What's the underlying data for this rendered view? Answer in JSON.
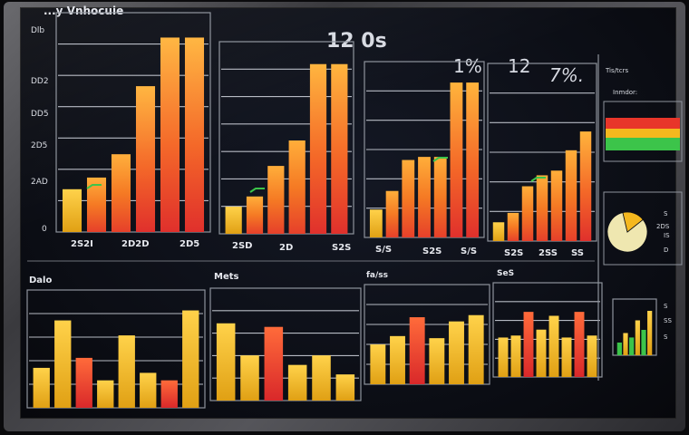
{
  "header": {
    "title": "...y Vnhocuie",
    "readout_center": "12 0s",
    "readout_right_1": "1%",
    "readout_right_2": "12",
    "readout_right_3": "7%."
  },
  "axis_labels": [
    "Dlb",
    "DD2",
    "DD5",
    "2D5",
    "2AD",
    "0"
  ],
  "top_panels": [
    {
      "ticks": [
        "2S2I",
        "2D2D",
        "2D5"
      ]
    },
    {
      "ticks": [
        "2SD",
        "2D",
        "S2S"
      ]
    },
    {
      "ticks": [
        "S/S",
        "S2S",
        "S/S"
      ]
    },
    {
      "ticks": [
        "S2S",
        "2SS",
        "SS"
      ]
    }
  ],
  "bottom_titles": [
    "Dalo",
    "Mets",
    "fa/ss",
    "SeS"
  ],
  "side": {
    "title": "Tis/tcrs",
    "subtitle": "Inmdor:",
    "pie_value": "2DS",
    "legend": [
      "S",
      "IS",
      "D",
      "S",
      "SS",
      "S"
    ]
  },
  "colors": {
    "yellow": "#f5b81e",
    "orange": "#f47a22",
    "red": "#e8352a",
    "green": "#3cc44a",
    "grid": "#c9cdd6"
  },
  "chart_data": [
    {
      "type": "bar",
      "panel": "top-1",
      "categories": [
        "1",
        "2",
        "3",
        "4",
        "5",
        "6"
      ],
      "values": [
        22,
        28,
        40,
        75,
        100,
        100
      ],
      "ylim": [
        0,
        110
      ]
    },
    {
      "type": "bar",
      "panel": "top-2",
      "categories": [
        "1",
        "2",
        "3",
        "4",
        "5",
        "6"
      ],
      "values": [
        16,
        22,
        40,
        55,
        100,
        100
      ],
      "ylim": [
        0,
        110
      ]
    },
    {
      "type": "bar",
      "panel": "top-3",
      "categories": [
        "1",
        "2",
        "3",
        "4",
        "5",
        "6",
        "7"
      ],
      "values": [
        18,
        30,
        50,
        52,
        52,
        100,
        100
      ],
      "ylim": [
        0,
        110
      ]
    },
    {
      "type": "bar",
      "panel": "top-4",
      "categories": [
        "1",
        "2",
        "3",
        "4",
        "5",
        "6",
        "7"
      ],
      "values": [
        12,
        18,
        35,
        42,
        45,
        58,
        70
      ],
      "ylim": [
        0,
        110
      ]
    },
    {
      "type": "bar",
      "panel": "bottom-1",
      "categories": [
        "1",
        "2",
        "3",
        "4",
        "5",
        "6",
        "7",
        "8"
      ],
      "values": [
        32,
        70,
        40,
        22,
        58,
        28,
        22,
        78
      ],
      "ylim": [
        0,
        90
      ]
    },
    {
      "type": "bar",
      "panel": "bottom-2",
      "categories": [
        "1",
        "2",
        "3",
        "4",
        "5",
        "6"
      ],
      "values": [
        65,
        38,
        62,
        30,
        38,
        22
      ],
      "ylim": [
        0,
        90
      ]
    },
    {
      "type": "bar",
      "panel": "bottom-3",
      "categories": [
        "1",
        "2",
        "3",
        "4",
        "5",
        "6"
      ],
      "values": [
        38,
        46,
        64,
        44,
        60,
        66
      ],
      "ylim": [
        0,
        90
      ]
    },
    {
      "type": "bar",
      "panel": "bottom-4",
      "categories": [
        "1",
        "2",
        "3",
        "4",
        "5",
        "6",
        "7",
        "8"
      ],
      "values": [
        40,
        42,
        66,
        48,
        62,
        40,
        66,
        42
      ],
      "ylim": [
        0,
        90
      ]
    },
    {
      "type": "pie",
      "panel": "side-pie",
      "categories": [
        "a",
        "b"
      ],
      "values": [
        82,
        18
      ]
    },
    {
      "type": "bar",
      "panel": "side-mini",
      "categories": [
        "1",
        "2",
        "3",
        "4",
        "5",
        "6"
      ],
      "values": [
        20,
        35,
        28,
        55,
        40,
        70
      ],
      "ylim": [
        0,
        80
      ]
    }
  ]
}
